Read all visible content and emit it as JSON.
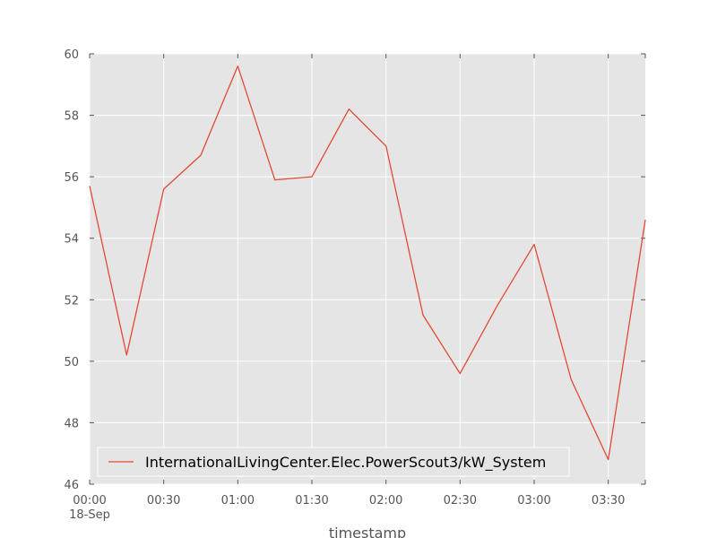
{
  "chart_data": {
    "type": "line",
    "xlabel": "timestamp",
    "ylabel": "",
    "ylim": [
      46,
      60
    ],
    "yticks": [
      46,
      48,
      50,
      52,
      54,
      56,
      58,
      60
    ],
    "xlim_minutes": [
      0,
      225
    ],
    "xticks": [
      {
        "minute": 0,
        "label": "00:00",
        "sublabel": "18-Sep"
      },
      {
        "minute": 30,
        "label": "00:30"
      },
      {
        "minute": 60,
        "label": "01:00"
      },
      {
        "minute": 90,
        "label": "01:30"
      },
      {
        "minute": 120,
        "label": "02:00"
      },
      {
        "minute": 150,
        "label": "02:30"
      },
      {
        "minute": 180,
        "label": "03:00"
      },
      {
        "minute": 210,
        "label": "03:30"
      }
    ],
    "grid": true,
    "legend_position": "lower-left",
    "series": [
      {
        "name": "InternationalLivingCenter.Elec.PowerScout3/kW_System",
        "color": "#e24a33",
        "x": [
          "00:00",
          "00:15",
          "00:30",
          "00:45",
          "01:00",
          "01:15",
          "01:30",
          "01:45",
          "02:00",
          "02:15",
          "02:30",
          "02:45",
          "03:00",
          "03:15",
          "03:30",
          "03:45"
        ],
        "y": [
          55.7,
          50.2,
          55.6,
          56.7,
          59.6,
          55.9,
          56.0,
          58.2,
          57.0,
          51.5,
          49.6,
          51.8,
          53.8,
          49.4,
          46.8,
          54.6
        ]
      }
    ]
  }
}
